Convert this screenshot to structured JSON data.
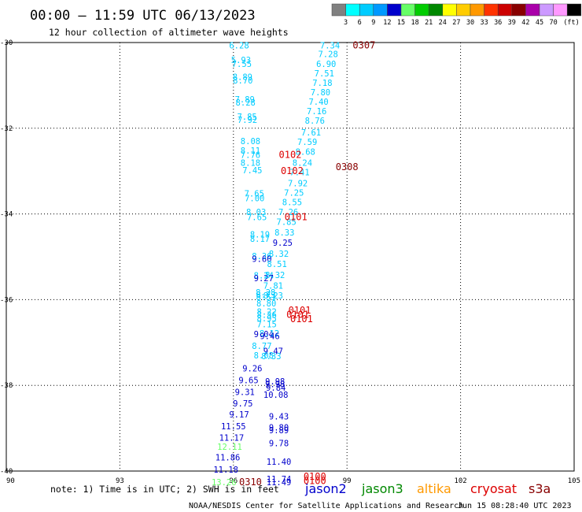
{
  "title": "00:00 – 11:59 UTC 06/13/2023",
  "subtitle": "12 hour collection of altimeter wave heights",
  "note": "note: 1) Time is in UTC; 2) SWH is in feet",
  "footer_left": "NOAA/NESDIS Center for Satellite Applications and Research",
  "footer_right": "Jun 15 08:28:40 UTC 2023",
  "satellites": [
    {
      "name": "jason2",
      "color": "#0000cc"
    },
    {
      "name": "jason3",
      "color": "#008800"
    },
    {
      "name": "altika",
      "color": "#ff9900"
    },
    {
      "name": "cryosat",
      "color": "#dd0000"
    },
    {
      "name": "s3a",
      "color": "#880000"
    }
  ],
  "color_scale": {
    "ticks": [
      "3",
      "6",
      "9",
      "12",
      "15",
      "18",
      "21",
      "24",
      "27",
      "30",
      "33",
      "36",
      "39",
      "42",
      "45",
      "70",
      "(ft)"
    ],
    "colors": [
      "#808080",
      "#00ffff",
      "#00ccff",
      "#0099ff",
      "#0000cc",
      "#66ff66",
      "#00cc00",
      "#008800",
      "#ffff00",
      "#ffcc00",
      "#ff9900",
      "#ff3300",
      "#cc0000",
      "#880000",
      "#aa00aa",
      "#cc99ff",
      "#ff99ff",
      "#000000"
    ]
  },
  "chart_data": {
    "type": "scatter",
    "xlabel": "",
    "ylabel": "",
    "xlim": [
      90,
      105
    ],
    "ylim": [
      -40,
      -30
    ],
    "x_ticks": [
      90,
      93,
      96,
      99,
      102,
      105
    ],
    "y_ticks": [
      -30,
      -32,
      -34,
      -36,
      -38,
      -40
    ],
    "x_tick_labels": [
      "90",
      "93",
      "96",
      "99",
      "102",
      "105"
    ],
    "y_tick_labels": [
      "-30",
      "-32",
      "-34",
      "-36",
      "-38",
      "-40"
    ],
    "grid": true,
    "points": [
      {
        "x": 96.15,
        "y": -30.06,
        "label": "6.28",
        "color": "#00ccff"
      },
      {
        "x": 96.2,
        "y": -30.4,
        "label": "5.93",
        "color": "#00ccff"
      },
      {
        "x": 96.22,
        "y": -30.5,
        "label": "7.55",
        "color": "#00ccff"
      },
      {
        "x": 96.24,
        "y": -30.8,
        "label": "8.89",
        "color": "#00ccff"
      },
      {
        "x": 96.25,
        "y": -30.88,
        "label": "8.70",
        "color": "#00ccff"
      },
      {
        "x": 96.3,
        "y": -31.32,
        "label": "7.89",
        "color": "#00ccff"
      },
      {
        "x": 96.32,
        "y": -31.4,
        "label": "8.28",
        "color": "#00ccff"
      },
      {
        "x": 96.36,
        "y": -31.73,
        "label": "7.85",
        "color": "#00ccff"
      },
      {
        "x": 96.37,
        "y": -31.8,
        "label": "7.92",
        "color": "#00ccff"
      },
      {
        "x": 96.45,
        "y": -32.3,
        "label": "8.08",
        "color": "#00ccff"
      },
      {
        "x": 96.45,
        "y": -32.52,
        "label": "8.11",
        "color": "#00ccff"
      },
      {
        "x": 96.45,
        "y": -32.62,
        "label": "7.76",
        "color": "#00ccff"
      },
      {
        "x": 96.45,
        "y": -32.8,
        "label": "8.18",
        "color": "#00ccff"
      },
      {
        "x": 96.5,
        "y": -32.98,
        "label": "7.45",
        "color": "#00ccff"
      },
      {
        "x": 96.55,
        "y": -33.52,
        "label": "7.65",
        "color": "#00ccff"
      },
      {
        "x": 96.56,
        "y": -33.63,
        "label": "7.00",
        "color": "#00ccff"
      },
      {
        "x": 96.6,
        "y": -33.95,
        "label": "8.03",
        "color": "#00ccff"
      },
      {
        "x": 96.62,
        "y": -34.07,
        "label": "7.65",
        "color": "#00ccff"
      },
      {
        "x": 96.7,
        "y": -34.48,
        "label": "8.19",
        "color": "#00ccff"
      },
      {
        "x": 96.7,
        "y": -34.58,
        "label": "8.17",
        "color": "#00ccff"
      },
      {
        "x": 96.75,
        "y": -34.98,
        "label": "8.36",
        "color": "#00ccff"
      },
      {
        "x": 96.75,
        "y": -35.05,
        "label": "9.60",
        "color": "#0000cc"
      },
      {
        "x": 96.8,
        "y": -35.43,
        "label": "8.24",
        "color": "#00ccff"
      },
      {
        "x": 96.8,
        "y": -35.5,
        "label": "9.27",
        "color": "#0000cc"
      },
      {
        "x": 96.85,
        "y": -35.83,
        "label": "8.28",
        "color": "#00ccff"
      },
      {
        "x": 96.86,
        "y": -35.88,
        "label": "8.73",
        "color": "#00ccff"
      },
      {
        "x": 96.86,
        "y": -35.94,
        "label": "8.51",
        "color": "#00ccff"
      },
      {
        "x": 96.87,
        "y": -36.08,
        "label": "8.80",
        "color": "#00ccff"
      },
      {
        "x": 96.88,
        "y": -36.28,
        "label": "8.22",
        "color": "#00ccff"
      },
      {
        "x": 96.88,
        "y": -36.35,
        "label": "8.36",
        "color": "#00ccff"
      },
      {
        "x": 96.88,
        "y": -36.43,
        "label": "8.95",
        "color": "#00ccff"
      },
      {
        "x": 96.88,
        "y": -36.57,
        "label": "7.15",
        "color": "#00ccff"
      },
      {
        "x": 96.8,
        "y": -36.8,
        "label": "9.04",
        "color": "#0000cc"
      },
      {
        "x": 96.95,
        "y": -36.78,
        "label": "8.12",
        "color": "#00ccff"
      },
      {
        "x": 96.96,
        "y": -36.85,
        "label": "9.46",
        "color": "#0000cc"
      },
      {
        "x": 96.75,
        "y": -37.08,
        "label": "8.77",
        "color": "#00ccff"
      },
      {
        "x": 97.05,
        "y": -37.2,
        "label": "9.47",
        "color": "#0000cc"
      },
      {
        "x": 96.8,
        "y": -37.3,
        "label": "8.08",
        "color": "#00ccff"
      },
      {
        "x": 97.0,
        "y": -37.32,
        "label": "8.33",
        "color": "#00ccff"
      },
      {
        "x": 96.5,
        "y": -37.6,
        "label": "9.26",
        "color": "#0000cc"
      },
      {
        "x": 96.4,
        "y": -37.88,
        "label": "9.65",
        "color": "#0000cc"
      },
      {
        "x": 97.1,
        "y": -37.9,
        "label": "9.98",
        "color": "#0000cc"
      },
      {
        "x": 97.1,
        "y": -37.97,
        "label": "9.98",
        "color": "#0000cc"
      },
      {
        "x": 97.12,
        "y": -38.05,
        "label": "9.84",
        "color": "#0000cc"
      },
      {
        "x": 96.3,
        "y": -38.15,
        "label": "9.31",
        "color": "#0000cc"
      },
      {
        "x": 97.12,
        "y": -38.22,
        "label": "10.08",
        "color": "#0000cc"
      },
      {
        "x": 96.25,
        "y": -38.42,
        "label": "9.75",
        "color": "#0000cc"
      },
      {
        "x": 96.15,
        "y": -38.68,
        "label": "9.17",
        "color": "#0000cc"
      },
      {
        "x": 97.2,
        "y": -38.72,
        "label": "9.43",
        "color": "#0000cc"
      },
      {
        "x": 96.0,
        "y": -38.95,
        "label": "11.55",
        "color": "#0000cc"
      },
      {
        "x": 97.2,
        "y": -38.98,
        "label": "9.80",
        "color": "#0000cc"
      },
      {
        "x": 97.2,
        "y": -39.04,
        "label": "9.89",
        "color": "#0000cc"
      },
      {
        "x": 95.95,
        "y": -39.22,
        "label": "11.17",
        "color": "#0000cc"
      },
      {
        "x": 97.2,
        "y": -39.35,
        "label": "9.78",
        "color": "#0000cc"
      },
      {
        "x": 95.9,
        "y": -39.43,
        "label": "12.11",
        "color": "#66ff66"
      },
      {
        "x": 95.85,
        "y": -39.68,
        "label": "11.86",
        "color": "#0000cc"
      },
      {
        "x": 97.2,
        "y": -39.78,
        "label": "11.40",
        "color": "#0000cc"
      },
      {
        "x": 95.8,
        "y": -39.96,
        "label": "11.18",
        "color": "#0000cc"
      },
      {
        "x": 97.2,
        "y": -40.18,
        "label": "11.74",
        "color": "#0000cc"
      },
      {
        "x": 95.75,
        "y": -40.26,
        "label": "13.26",
        "color": "#66ff66"
      },
      {
        "x": 97.2,
        "y": -40.26,
        "label": "11.49",
        "color": "#0000cc"
      },
      {
        "x": 98.55,
        "y": -30.06,
        "label": "7.34",
        "color": "#00ccff"
      },
      {
        "x": 98.5,
        "y": -30.27,
        "label": "7.28",
        "color": "#00ccff"
      },
      {
        "x": 98.45,
        "y": -30.5,
        "label": "6.90",
        "color": "#00ccff"
      },
      {
        "x": 98.4,
        "y": -30.72,
        "label": "7.51",
        "color": "#00ccff"
      },
      {
        "x": 98.35,
        "y": -30.94,
        "label": "7.18",
        "color": "#00ccff"
      },
      {
        "x": 98.3,
        "y": -31.16,
        "label": "7.80",
        "color": "#00ccff"
      },
      {
        "x": 98.25,
        "y": -31.38,
        "label": "7.40",
        "color": "#00ccff"
      },
      {
        "x": 98.2,
        "y": -31.6,
        "label": "7.16",
        "color": "#00ccff"
      },
      {
        "x": 98.15,
        "y": -31.82,
        "label": "8.76",
        "color": "#00ccff"
      },
      {
        "x": 98.05,
        "y": -32.1,
        "label": "7.61",
        "color": "#00ccff"
      },
      {
        "x": 97.95,
        "y": -32.32,
        "label": "7.59",
        "color": "#00ccff"
      },
      {
        "x": 97.9,
        "y": -32.55,
        "label": "8.68",
        "color": "#00ccff"
      },
      {
        "x": 97.82,
        "y": -32.8,
        "label": "8.24",
        "color": "#00ccff"
      },
      {
        "x": 97.75,
        "y": -33.02,
        "label": "7.41",
        "color": "#00ccff"
      },
      {
        "x": 97.7,
        "y": -33.28,
        "label": "7.92",
        "color": "#00ccff"
      },
      {
        "x": 97.6,
        "y": -33.5,
        "label": "7.25",
        "color": "#00ccff"
      },
      {
        "x": 97.55,
        "y": -33.72,
        "label": "8.55",
        "color": "#00ccff"
      },
      {
        "x": 97.45,
        "y": -33.95,
        "label": "7.26",
        "color": "#00ccff"
      },
      {
        "x": 97.4,
        "y": -34.18,
        "label": "7.85",
        "color": "#00ccff"
      },
      {
        "x": 97.35,
        "y": -34.43,
        "label": "8.33",
        "color": "#00ccff"
      },
      {
        "x": 97.3,
        "y": -34.67,
        "label": "9.25",
        "color": "#0000cc"
      },
      {
        "x": 97.2,
        "y": -34.93,
        "label": "8.32",
        "color": "#00ccff"
      },
      {
        "x": 97.15,
        "y": -35.17,
        "label": "8.51",
        "color": "#00ccff"
      },
      {
        "x": 97.1,
        "y": -35.42,
        "label": "8.32",
        "color": "#00ccff"
      },
      {
        "x": 97.05,
        "y": -35.67,
        "label": "7.81",
        "color": "#00ccff"
      },
      {
        "x": 97.05,
        "y": -35.9,
        "label": "8.23",
        "color": "#00ccff"
      },
      {
        "x": 97.5,
        "y": -32.62,
        "label": "0102",
        "color": "#dd0000"
      },
      {
        "x": 97.55,
        "y": -33.0,
        "label": "0102",
        "color": "#dd0000"
      },
      {
        "x": 97.65,
        "y": -34.07,
        "label": "0101",
        "color": "#dd0000"
      },
      {
        "x": 97.75,
        "y": -36.25,
        "label": "0101",
        "color": "#dd0000"
      },
      {
        "x": 97.7,
        "y": -36.35,
        "label": "0101",
        "color": "#dd0000"
      },
      {
        "x": 97.8,
        "y": -36.45,
        "label": "0101",
        "color": "#dd0000"
      },
      {
        "x": 96.45,
        "y": -40.26,
        "label": "0310",
        "color": "#880000"
      },
      {
        "x": 98.15,
        "y": -40.13,
        "label": "0100",
        "color": "#dd0000"
      },
      {
        "x": 98.15,
        "y": -40.23,
        "label": "0100",
        "color": "#dd0000"
      },
      {
        "x": 99.45,
        "y": -30.06,
        "label": "0307",
        "color": "#880000"
      },
      {
        "x": 99.0,
        "y": -32.9,
        "label": "0308",
        "color": "#880000"
      }
    ]
  }
}
